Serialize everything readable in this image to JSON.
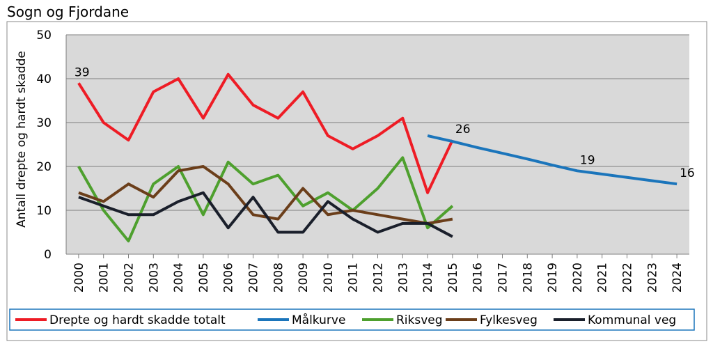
{
  "chart_data": {
    "type": "line",
    "title": "Sogn og Fjordane",
    "ylabel": "Antall drepte og hardt skadde",
    "x": [
      2000,
      2001,
      2002,
      2003,
      2004,
      2005,
      2006,
      2007,
      2008,
      2009,
      2010,
      2011,
      2012,
      2013,
      2014,
      2015,
      2016,
      2017,
      2018,
      2019,
      2020,
      2021,
      2022,
      2023,
      2024
    ],
    "xlim": [
      1999.5,
      2024.5
    ],
    "xticks": [
      2000,
      2001,
      2002,
      2003,
      2004,
      2005,
      2006,
      2007,
      2008,
      2009,
      2010,
      2011,
      2012,
      2013,
      2014,
      2015,
      2016,
      2017,
      2018,
      2019,
      2020,
      2021,
      2022,
      2023,
      2024
    ],
    "ylim": [
      0,
      50
    ],
    "yticks": [
      0,
      10,
      20,
      30,
      40,
      50
    ],
    "grid": true,
    "series": [
      {
        "name": "Drepte og hardt skadde totalt",
        "color": "#ee1c25",
        "label_x": [
          2000,
          2015
        ],
        "values": [
          39,
          30,
          26,
          37,
          40,
          31,
          41,
          34,
          31,
          37,
          27,
          24,
          27,
          31,
          14,
          26,
          null,
          null,
          null,
          null,
          null,
          null,
          null,
          null,
          null
        ]
      },
      {
        "name": "Målkurve",
        "color": "#1b75bb",
        "label_x": [
          2020,
          2024
        ],
        "values": [
          null,
          null,
          null,
          null,
          null,
          null,
          null,
          null,
          null,
          null,
          null,
          null,
          null,
          null,
          27,
          25.7,
          24.3,
          23,
          21.7,
          20.3,
          19,
          18.25,
          17.5,
          16.75,
          16
        ]
      },
      {
        "name": "Riksveg",
        "color": "#4ea02e",
        "label_x": [],
        "values": [
          20,
          10,
          3,
          16,
          20,
          9,
          21,
          16,
          18,
          11,
          14,
          10,
          15,
          22,
          6,
          11,
          null,
          null,
          null,
          null,
          null,
          null,
          null,
          null,
          null
        ]
      },
      {
        "name": "Fylkesveg",
        "color": "#6b3e1a",
        "label_x": [],
        "values": [
          14,
          12,
          16,
          13,
          19,
          20,
          16,
          9,
          8,
          15,
          9,
          10,
          9,
          8,
          7,
          8,
          null,
          null,
          null,
          null,
          null,
          null,
          null,
          null,
          null
        ]
      },
      {
        "name": "Kommunal veg",
        "color": "#1a1f2b",
        "label_x": [],
        "values": [
          13,
          11,
          9,
          9,
          12,
          14,
          6,
          13,
          5,
          5,
          12,
          8,
          5,
          7,
          7,
          4,
          null,
          null,
          null,
          null,
          null,
          null,
          null,
          null,
          null
        ]
      }
    ]
  }
}
